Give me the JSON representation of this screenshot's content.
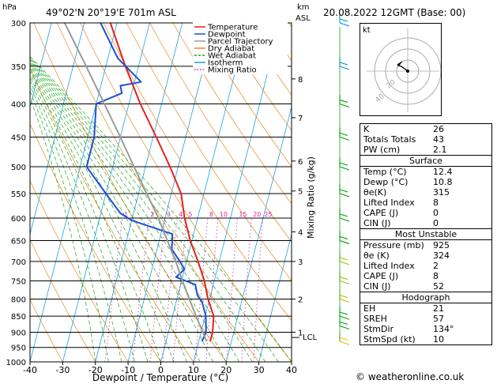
{
  "header": {
    "location": "49°02'N  20°19'E  701m  ASL",
    "datetime": "20.08.2022  12GMT  (Base: 00)"
  },
  "axis_labels": {
    "hpa": "hPa",
    "km": "km",
    "asl": "ASL",
    "x_title": "Dewpoint / Temperature (°C)",
    "mixing_ratio": "Mixing Ratio (g/kg)",
    "lcl": "LCL"
  },
  "legend": [
    {
      "label": "Temperature",
      "color": "#e8201c"
    },
    {
      "label": "Dewpoint",
      "color": "#1e4fd8"
    },
    {
      "label": "Parcel Trajectory",
      "color": "#9a9a9a"
    },
    {
      "label": "Dry Adiabat",
      "color": "#e8891c"
    },
    {
      "label": "Wet Adiabat",
      "color": "#18a818"
    },
    {
      "label": "Isotherm",
      "color": "#1ea0e0"
    },
    {
      "label": "Mixing Ratio",
      "color": "#e01ea8"
    }
  ],
  "mixing_ratio_labels": [
    "1",
    "2",
    "3",
    "4",
    "5",
    "8",
    "10",
    "15",
    "20",
    "25"
  ],
  "hodograph": {
    "label": "kt",
    "ring_labels": [
      "20",
      "40"
    ]
  },
  "indices": [
    {
      "label": "K",
      "value": "26"
    },
    {
      "label": "Totals Totals",
      "value": "43"
    },
    {
      "label": "PW (cm)",
      "value": "2.1"
    }
  ],
  "surface": {
    "title": "Surface",
    "rows": [
      {
        "label": "Temp (°C)",
        "value": "12.4"
      },
      {
        "label": "Dewp (°C)",
        "value": "10.8"
      },
      {
        "label": "θe(K)",
        "value": "315"
      },
      {
        "label": "Lifted Index",
        "value": "8"
      },
      {
        "label": "CAPE (J)",
        "value": "0"
      },
      {
        "label": "CIN (J)",
        "value": "0"
      }
    ]
  },
  "most_unstable": {
    "title": "Most Unstable",
    "rows": [
      {
        "label": "Pressure (mb)",
        "value": "925"
      },
      {
        "label": "θe (K)",
        "value": "324"
      },
      {
        "label": "Lifted Index",
        "value": "2"
      },
      {
        "label": "CAPE (J)",
        "value": "8"
      },
      {
        "label": "CIN (J)",
        "value": "52"
      }
    ]
  },
  "hodograph_table": {
    "title": "Hodograph",
    "rows": [
      {
        "label": "EH",
        "value": "21"
      },
      {
        "label": "SREH",
        "value": "57"
      },
      {
        "label": "StmDir",
        "value": "134°"
      },
      {
        "label": "StmSpd (kt)",
        "value": "10"
      }
    ]
  },
  "footer": "© weatheronline.co.uk",
  "chart_data": {
    "type": "line",
    "xlabel": "Dewpoint / Temperature (°C)",
    "ylabel": "hPa",
    "xlim": [
      -40,
      40
    ],
    "ylim": [
      1000,
      300
    ],
    "x_ticks": [
      -40,
      -30,
      -20,
      -10,
      0,
      10,
      20,
      30,
      40
    ],
    "p_ticks": [
      300,
      350,
      400,
      450,
      500,
      550,
      600,
      650,
      700,
      750,
      800,
      850,
      900,
      950,
      1000
    ],
    "km_ticks": [
      {
        "km": 1,
        "p": 900
      },
      {
        "km": 2,
        "p": 800
      },
      {
        "km": 3,
        "p": 700
      },
      {
        "km": 4,
        "p": 630
      },
      {
        "km": 5,
        "p": 545
      },
      {
        "km": 6,
        "p": 490
      },
      {
        "km": 7,
        "p": 420
      },
      {
        "km": 8,
        "p": 366
      }
    ],
    "lcl_pressure": 917,
    "series": [
      {
        "name": "Temperature",
        "color": "#e8201c",
        "points": [
          [
            930,
            13.5
          ],
          [
            900,
            13.5
          ],
          [
            850,
            12.6
          ],
          [
            800,
            9.5
          ],
          [
            750,
            7.0
          ],
          [
            700,
            3.5
          ],
          [
            650,
            -0.5
          ],
          [
            600,
            -4.0
          ],
          [
            550,
            -7.0
          ],
          [
            500,
            -12.5
          ],
          [
            450,
            -19.0
          ],
          [
            400,
            -26.5
          ],
          [
            350,
            -34.0
          ],
          [
            300,
            -42.0
          ]
        ]
      },
      {
        "name": "Dewpoint",
        "color": "#1e4fd8",
        "points": [
          [
            930,
            11.0
          ],
          [
            900,
            11.5
          ],
          [
            850,
            10.2
          ],
          [
            810,
            8.0
          ],
          [
            790,
            6.0
          ],
          [
            760,
            4.5
          ],
          [
            740,
            -2.0
          ],
          [
            720,
            0.0
          ],
          [
            700,
            -2.0
          ],
          [
            670,
            -5.5
          ],
          [
            650,
            -6.0
          ],
          [
            635,
            -6.5
          ],
          [
            605,
            -20.0
          ],
          [
            590,
            -24.0
          ],
          [
            550,
            -30.0
          ],
          [
            500,
            -38.0
          ],
          [
            450,
            -38.0
          ],
          [
            400,
            -40.0
          ],
          [
            385,
            -33.0
          ],
          [
            375,
            -34.0
          ],
          [
            370,
            -28.0
          ],
          [
            340,
            -37.0
          ],
          [
            300,
            -45.0
          ]
        ]
      },
      {
        "name": "Parcel Trajectory",
        "color": "#9a9a9a",
        "points": [
          [
            930,
            12.4
          ],
          [
            917,
            11.6
          ],
          [
            850,
            7.2
          ],
          [
            800,
            3.8
          ],
          [
            750,
            0.3
          ],
          [
            700,
            -3.3
          ],
          [
            650,
            -7.5
          ],
          [
            600,
            -12.0
          ],
          [
            550,
            -17.5
          ],
          [
            500,
            -23.5
          ],
          [
            450,
            -30.0
          ],
          [
            400,
            -37.5
          ],
          [
            350,
            -46.0
          ],
          [
            300,
            -56.0
          ]
        ]
      }
    ],
    "wind_barbs": [
      {
        "p": 930,
        "color": "#e8c81c"
      },
      {
        "p": 880,
        "color": "#18a818"
      },
      {
        "p": 850,
        "color": "#18a818"
      },
      {
        "p": 800,
        "color": "#c8c81c"
      },
      {
        "p": 750,
        "color": "#a8c81c"
      },
      {
        "p": 700,
        "color": "#a8c81c"
      },
      {
        "p": 650,
        "color": "#18a818"
      },
      {
        "p": 600,
        "color": "#18a818"
      },
      {
        "p": 550,
        "color": "#18a818"
      },
      {
        "p": 500,
        "color": "#18a818"
      },
      {
        "p": 450,
        "color": "#18a818"
      },
      {
        "p": 400,
        "color": "#18a818"
      },
      {
        "p": 350,
        "color": "#1ea0e0"
      },
      {
        "p": 300,
        "color": "#1ea0e0"
      }
    ]
  }
}
